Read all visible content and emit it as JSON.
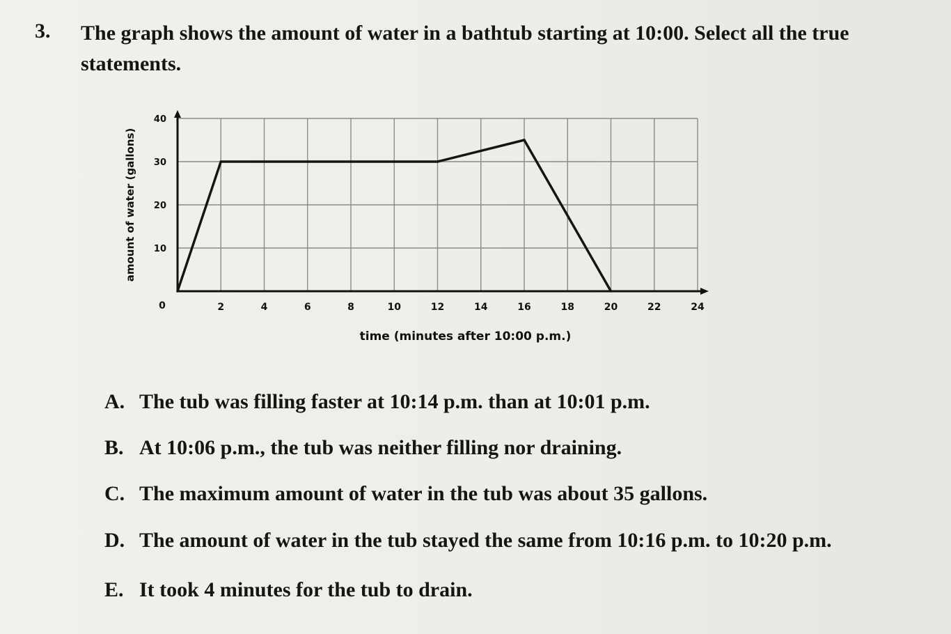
{
  "question": {
    "number": "3.",
    "text": "The graph shows the amount of water in a bathtub starting at 10:00. Select all the true statements."
  },
  "chart_data": {
    "type": "line",
    "title": "",
    "xlabel": "time (minutes after 10:00 p.m.)",
    "ylabel": "amount of water (gallons)",
    "xlim": [
      0,
      24
    ],
    "ylim": [
      0,
      40
    ],
    "x_ticks": [
      "2",
      "4",
      "6",
      "8",
      "10",
      "12",
      "14",
      "16",
      "18",
      "20",
      "22",
      "24"
    ],
    "y_ticks": [
      "10",
      "20",
      "30",
      "40"
    ],
    "origin_label": "0",
    "grid": true,
    "series": [
      {
        "x": [
          0,
          2,
          12,
          16,
          20
        ],
        "y": [
          0,
          30,
          30,
          35,
          0
        ]
      }
    ]
  },
  "options": [
    {
      "letter": "A.",
      "text": "The tub was filling faster at 10:14 p.m. than at 10:01 p.m."
    },
    {
      "letter": "B.",
      "text": "At 10:06 p.m., the tub was neither filling nor draining."
    },
    {
      "letter": "C.",
      "text": "The maximum amount of water in the tub was about 35 gallons."
    },
    {
      "letter": "D.",
      "text": "The amount of water in the tub stayed the same from 10:16 p.m. to 10:20 p.m."
    },
    {
      "letter": "E.",
      "text": "It took 4 minutes for the tub to drain."
    }
  ]
}
